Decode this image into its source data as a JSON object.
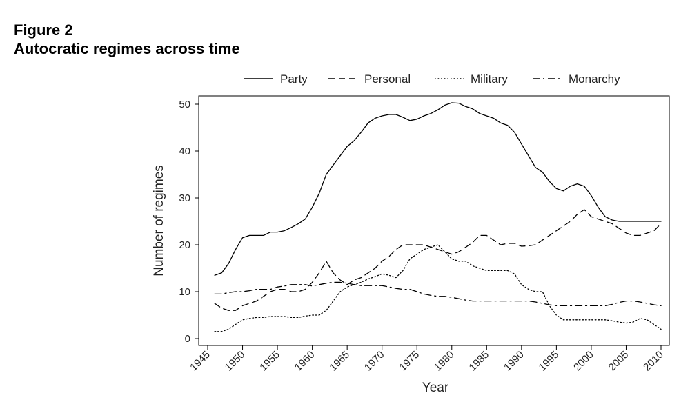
{
  "figure": {
    "label": "Figure 2",
    "caption": "Autocratic regimes across time"
  },
  "chart_data": {
    "type": "line",
    "title": "",
    "xlabel": "Year",
    "ylabel": "Number of regimes",
    "xlim": [
      1945,
      2010
    ],
    "ylim": [
      0,
      50
    ],
    "x_ticks": [
      1945,
      1950,
      1955,
      1960,
      1965,
      1970,
      1975,
      1980,
      1985,
      1990,
      1995,
      2000,
      2005,
      2010
    ],
    "y_ticks": [
      0,
      10,
      20,
      30,
      40,
      50
    ],
    "grid": false,
    "legend_position": "top",
    "x": [
      1946,
      1947,
      1948,
      1949,
      1950,
      1951,
      1952,
      1953,
      1954,
      1955,
      1956,
      1957,
      1958,
      1959,
      1960,
      1961,
      1962,
      1963,
      1964,
      1965,
      1966,
      1967,
      1968,
      1969,
      1970,
      1971,
      1972,
      1973,
      1974,
      1975,
      1976,
      1977,
      1978,
      1979,
      1980,
      1981,
      1982,
      1983,
      1984,
      1985,
      1986,
      1987,
      1988,
      1989,
      1990,
      1991,
      1992,
      1993,
      1994,
      1995,
      1996,
      1997,
      1998,
      1999,
      2000,
      2001,
      2002,
      2003,
      2004,
      2005,
      2006,
      2007,
      2008,
      2009,
      2010
    ],
    "series": [
      {
        "name": "Party",
        "style": "solid",
        "values": [
          13.5,
          14,
          16,
          19,
          21.5,
          22,
          22,
          22,
          22.7,
          22.7,
          23,
          23.7,
          24.5,
          25.5,
          28,
          31,
          35,
          37,
          39,
          41,
          42.2,
          44,
          46,
          47,
          47.5,
          47.8,
          47.8,
          47.2,
          46.5,
          46.8,
          47.5,
          48,
          48.8,
          49.8,
          50.3,
          50.2,
          49.5,
          49,
          48,
          47.5,
          47,
          46,
          45.5,
          44,
          41.5,
          39,
          36.5,
          35.5,
          33.5,
          32,
          31.5,
          32.5,
          33,
          32.5,
          30.5,
          28,
          26,
          25.3,
          25,
          25,
          25,
          25,
          25,
          25,
          25
        ]
      },
      {
        "name": "Personal",
        "style": "dashed",
        "values": [
          7.5,
          6.5,
          6,
          6,
          7,
          7.5,
          8,
          9,
          10,
          10.5,
          10.5,
          10,
          10,
          10.5,
          12,
          14,
          16.5,
          14,
          12.5,
          11.5,
          12.5,
          13,
          14,
          15,
          16.5,
          17.5,
          19,
          20,
          20,
          20,
          20,
          19.5,
          19,
          18.5,
          18,
          18.5,
          19.5,
          20.5,
          22,
          22,
          21,
          20,
          20.3,
          20.3,
          19.7,
          19.8,
          20,
          21,
          22,
          23,
          24,
          25,
          26.5,
          27.5,
          26,
          25.5,
          25,
          24.5,
          23.5,
          22.5,
          22,
          22,
          22.5,
          23,
          24.5
        ]
      },
      {
        "name": "Military",
        "style": "dotted",
        "values": [
          1.5,
          1.5,
          2,
          3,
          4,
          4.3,
          4.5,
          4.5,
          4.7,
          4.7,
          4.7,
          4.5,
          4.5,
          4.8,
          5,
          5,
          6,
          8,
          10,
          11,
          11.5,
          12,
          12.7,
          13.2,
          13.8,
          13.5,
          13,
          14.5,
          17,
          18,
          19,
          19.5,
          20,
          18.5,
          17,
          16.5,
          16.5,
          15.5,
          15,
          14.5,
          14.5,
          14.5,
          14.5,
          13.8,
          11.5,
          10.5,
          10,
          10,
          7,
          5,
          4,
          4,
          4,
          4,
          4,
          4,
          4,
          3.8,
          3.5,
          3.3,
          3.5,
          4.3,
          4,
          3,
          2
        ]
      },
      {
        "name": "Monarchy",
        "style": "dashdot",
        "values": [
          9.5,
          9.5,
          9.8,
          10,
          10,
          10.2,
          10.5,
          10.5,
          10.5,
          11,
          11.2,
          11.5,
          11.5,
          11.5,
          11.2,
          11.5,
          11.8,
          12,
          12,
          11.8,
          11.5,
          11.3,
          11.3,
          11.3,
          11.3,
          11,
          10.7,
          10.5,
          10.5,
          10,
          9.5,
          9.2,
          9,
          9,
          8.8,
          8.5,
          8.2,
          8,
          8,
          8,
          8,
          8,
          8,
          8,
          8,
          8,
          7.8,
          7.5,
          7.2,
          7,
          7,
          7,
          7,
          7,
          7,
          7,
          7,
          7.3,
          7.7,
          8,
          8,
          7.8,
          7.5,
          7.2,
          7
        ]
      }
    ]
  }
}
